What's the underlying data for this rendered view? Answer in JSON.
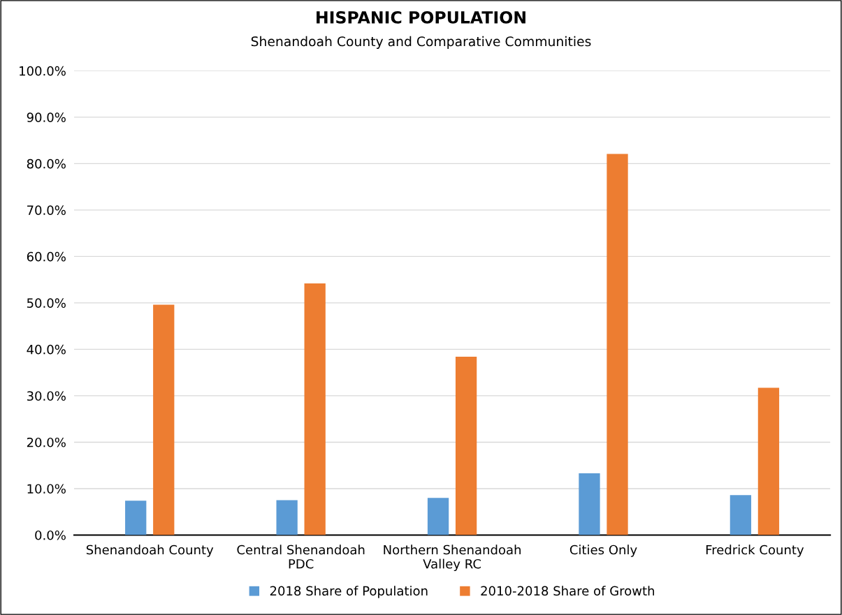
{
  "chart_data": {
    "type": "bar",
    "title": "HISPANIC POPULATION",
    "subtitle": "Shenandoah County and Comparative Communities",
    "categories": [
      "Shenandoah County",
      "Central Shenandoah\nPDC",
      "Northern Shenandoah\nValley RC",
      "Cities Only",
      "Fredrick County"
    ],
    "series": [
      {
        "name": "2018 Share of Population",
        "color": "#5b9bd5",
        "values": [
          7.4,
          7.5,
          8.0,
          13.3,
          8.6
        ]
      },
      {
        "name": "2010-2018 Share of Growth",
        "color": "#ed7d31",
        "values": [
          49.6,
          54.2,
          38.4,
          82.1,
          31.7
        ]
      }
    ],
    "ylim": [
      0,
      100
    ],
    "yticks": [
      {
        "value": 0,
        "label": "0.0%"
      },
      {
        "value": 10,
        "label": "10.0%"
      },
      {
        "value": 20,
        "label": "20.0%"
      },
      {
        "value": 30,
        "label": "30.0%"
      },
      {
        "value": 40,
        "label": "40.0%"
      },
      {
        "value": 50,
        "label": "50.0%"
      },
      {
        "value": 60,
        "label": "60.0%"
      },
      {
        "value": 70,
        "label": "70.0%"
      },
      {
        "value": 80,
        "label": "80.0%"
      },
      {
        "value": 90,
        "label": "90.0%"
      },
      {
        "value": 100,
        "label": "100.0%"
      }
    ],
    "grid": "y",
    "legend": "bottom"
  }
}
